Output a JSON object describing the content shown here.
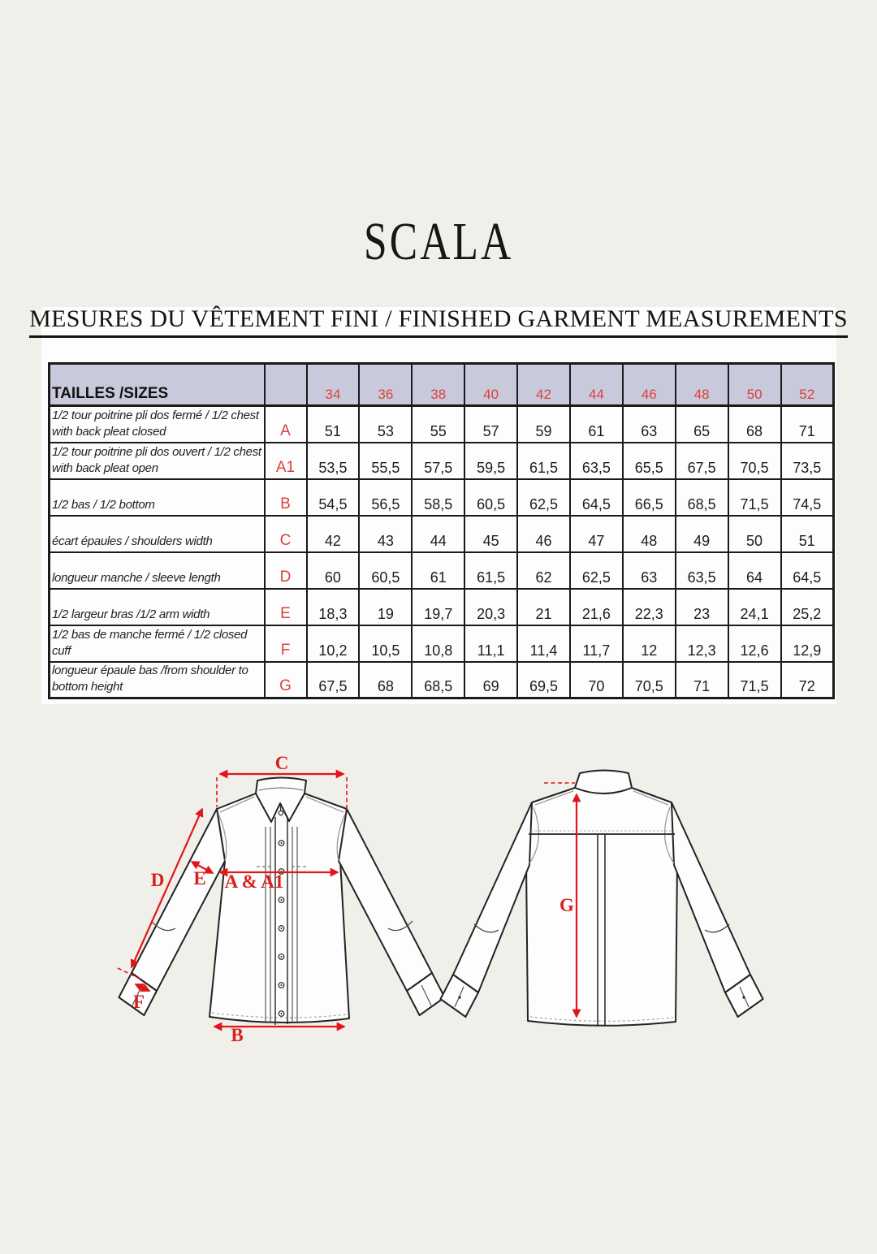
{
  "page": {
    "title": "SCALA",
    "section_header": "MESURES DU VÊTEMENT FINI / FINISHED GARMENT MEASUREMENTS"
  },
  "table": {
    "corner_label": "TAILLES /SIZES",
    "sizes": [
      "34",
      "36",
      "38",
      "40",
      "42",
      "44",
      "46",
      "48",
      "50",
      "52"
    ],
    "rows": [
      {
        "label": "1/2 tour poitrine pli dos fermé / 1/2 chest with back pleat closed",
        "letter": "A",
        "values": [
          "51",
          "53",
          "55",
          "57",
          "59",
          "61",
          "63",
          "65",
          "68",
          "71"
        ]
      },
      {
        "label": "1/2 tour poitrine pli dos ouvert / 1/2 chest with back pleat open",
        "letter": "A1",
        "values": [
          "53,5",
          "55,5",
          "57,5",
          "59,5",
          "61,5",
          "63,5",
          "65,5",
          "67,5",
          "70,5",
          "73,5"
        ]
      },
      {
        "label": "1/2 bas / 1/2 bottom",
        "letter": "B",
        "values": [
          "54,5",
          "56,5",
          "58,5",
          "60,5",
          "62,5",
          "64,5",
          "66,5",
          "68,5",
          "71,5",
          "74,5"
        ]
      },
      {
        "label": "écart épaules / shoulders width",
        "letter": "C",
        "values": [
          "42",
          "43",
          "44",
          "45",
          "46",
          "47",
          "48",
          "49",
          "50",
          "51"
        ]
      },
      {
        "label": "longueur manche  / sleeve length",
        "letter": "D",
        "values": [
          "60",
          "60,5",
          "61",
          "61,5",
          "62",
          "62,5",
          "63",
          "63,5",
          "64",
          "64,5"
        ]
      },
      {
        "label": "1/2 largeur bras /1/2  arm width",
        "letter": "E",
        "values": [
          "18,3",
          "19",
          "19,7",
          "20,3",
          "21",
          "21,6",
          "22,3",
          "23",
          "24,1",
          "25,2"
        ]
      },
      {
        "label": "1/2 bas de manche fermé  / 1/2 closed cuff",
        "letter": "F",
        "values": [
          "10,2",
          "10,5",
          "10,8",
          "11,1",
          "11,4",
          "11,7",
          "12",
          "12,3",
          "12,6",
          "12,9"
        ]
      },
      {
        "label": "longueur épaule bas  /from shoulder to bottom height",
        "letter": "G",
        "values": [
          "67,5",
          "68",
          "68,5",
          "69",
          "69,5",
          "70",
          "70,5",
          "71",
          "71,5",
          "72"
        ]
      }
    ]
  },
  "diagram": {
    "measure_labels": {
      "c": "C",
      "d": "D",
      "e": "E",
      "a_a1": "A & A1",
      "f": "F",
      "b": "B",
      "g": "G"
    }
  },
  "colors": {
    "page_bg": "#f1efea",
    "panel_bg": "#fdfdfd",
    "table_header_bg": "#c9c9dc",
    "table_accent_red": "#dd4038",
    "arrow_red": "#e1151a",
    "line_black": "#1a1a1a"
  }
}
